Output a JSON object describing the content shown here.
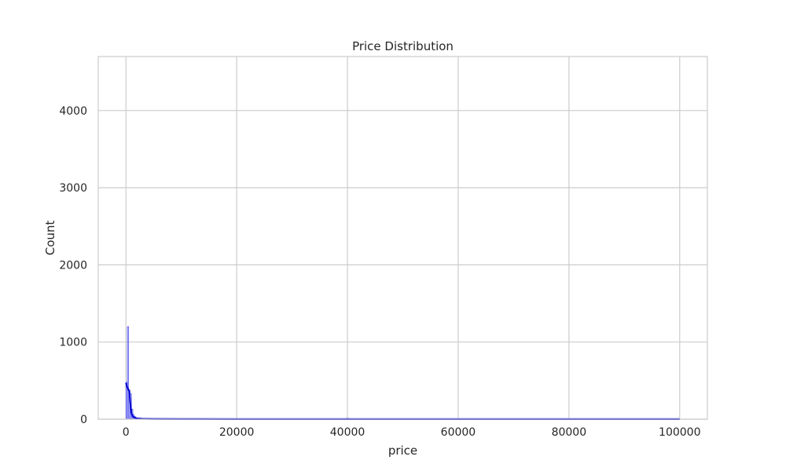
{
  "chart_data": {
    "type": "histogram",
    "title": "Price Distribution",
    "xlabel": "price",
    "ylabel": "Count",
    "xlim": [
      -5000,
      105000
    ],
    "ylim": [
      0,
      4700
    ],
    "xticks": [
      0,
      20000,
      40000,
      60000,
      80000,
      100000
    ],
    "yticks": [
      0,
      1000,
      2000,
      3000,
      4000
    ],
    "grid": true,
    "colors": {
      "bars_fill": "#7f7ff5",
      "bars_edge": "#4a4af0",
      "kde_line": "#0000cc",
      "grid": "#cccccc",
      "spine": "#cccccc"
    },
    "bins": [
      {
        "x0": 0,
        "x1": 250,
        "count": 480
      },
      {
        "x0": 250,
        "x1": 500,
        "count": 1200
      },
      {
        "x0": 500,
        "x1": 750,
        "count": 380
      },
      {
        "x0": 750,
        "x1": 1000,
        "count": 330
      },
      {
        "x0": 1000,
        "x1": 1250,
        "count": 130
      },
      {
        "x0": 1250,
        "x1": 1500,
        "count": 60
      },
      {
        "x0": 1500,
        "x1": 1750,
        "count": 35
      },
      {
        "x0": 1750,
        "x1": 2000,
        "count": 20
      },
      {
        "x0": 2000,
        "x1": 2500,
        "count": 12
      },
      {
        "x0": 2500,
        "x1": 3500,
        "count": 6
      },
      {
        "x0": 3500,
        "x1": 5000,
        "count": 3
      },
      {
        "x0": 5000,
        "x1": 10000,
        "count": 2
      },
      {
        "x0": 39750,
        "x1": 40250,
        "count": 12
      }
    ],
    "kde": {
      "x": [
        0,
        200,
        400,
        600,
        800,
        1000,
        1200,
        1500,
        2000,
        3000,
        5000,
        10000,
        20000,
        40000,
        60000,
        80000,
        100000
      ],
      "y": [
        470,
        420,
        390,
        360,
        200,
        80,
        40,
        20,
        10,
        5,
        2,
        1,
        0.5,
        0.5,
        0.3,
        0.2,
        0.1
      ]
    }
  }
}
